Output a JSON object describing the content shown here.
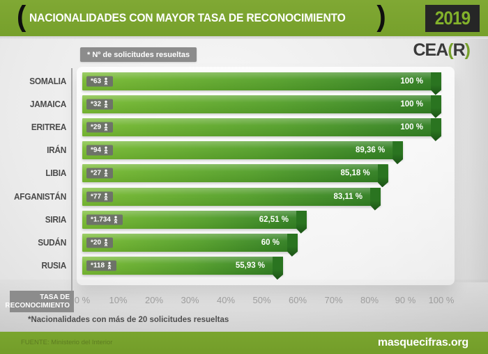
{
  "header": {
    "title": "NACIONALIDADES CON MAYOR TASA DE RECONOCIMIENTO",
    "year": "2019",
    "bracket_left": "(",
    "bracket_right": ")"
  },
  "logo": {
    "prefix": "CEA",
    "paren_open": "(",
    "r": "R",
    "paren_close": ")"
  },
  "legend": {
    "label": "* Nº de solicitudes resueltas"
  },
  "chart_data": {
    "type": "bar",
    "orientation": "horizontal",
    "title": "NACIONALIDADES CON MAYOR TASA DE RECONOCIMIENTO",
    "xlabel": "TASA DE RECONOCIMIENTO",
    "xlim": [
      0,
      100
    ],
    "x_ticks": [
      "0 %",
      "10%",
      "20%",
      "30%",
      "40%",
      "50%",
      "60%",
      "70%",
      "80%",
      "90 %",
      "100 %"
    ],
    "categories": [
      "SOMALIA",
      "JAMAICA",
      "ERITREA",
      "IRÁN",
      "LIBIA",
      "AFGANISTÁN",
      "SIRIA",
      "SUDÁN",
      "RUSIA"
    ],
    "series": [
      {
        "name": "Tasa de reconocimiento (%)",
        "values": [
          100,
          100,
          100,
          89.36,
          85.18,
          83.11,
          62.51,
          60,
          55.93
        ]
      }
    ],
    "rows": [
      {
        "country": "SOMALIA",
        "count": "*63",
        "value": 100,
        "value_label": "100 %"
      },
      {
        "country": "JAMAICA",
        "count": "*32",
        "value": 100,
        "value_label": "100 %"
      },
      {
        "country": "ERITREA",
        "count": "*29",
        "value": 100,
        "value_label": "100 %"
      },
      {
        "country": "IRÁN",
        "count": "*94",
        "value": 89.36,
        "value_label": "89,36 %"
      },
      {
        "country": "LIBIA",
        "count": "*27",
        "value": 85.18,
        "value_label": "85,18 %"
      },
      {
        "country": "AFGANISTÁN",
        "count": "*77",
        "value": 83.11,
        "value_label": "83,11 %"
      },
      {
        "country": "SIRIA",
        "count": "*1.734",
        "value": 62.51,
        "value_label": "62,51 %"
      },
      {
        "country": "SUDÁN",
        "count": "*20",
        "value": 60,
        "value_label": "60 %"
      },
      {
        "country": "RUSIA",
        "count": "*118",
        "value": 55.93,
        "value_label": "55,93 %"
      }
    ],
    "legend_note": "* Nº de solicitudes resueltas",
    "footnote": "*Nacionalidades con más de 20 solicitudes resueltas",
    "legend_position": "top-left",
    "grid": false
  },
  "axis_label": {
    "line1": "TASA DE",
    "line2": "RECONOCIMIENTO"
  },
  "footnote": "*Nacionalidades con más de 20 solicitudes resueltas",
  "footer": {
    "source": "FUENTE: Ministerio del Interior",
    "site": "masquecifras.org"
  },
  "colors": {
    "header_green": "#76a02b",
    "year_text_green": "#83b22b",
    "year_box_bg": "#262626",
    "bar_light_green": "#79bb33",
    "bar_dark_green": "#2f7d22",
    "bar_fold_green": "#1c5216",
    "badge_gray": "#6c6c6c",
    "axis_box_gray": "#8c8c8c",
    "tick_gray": "#9d9d9d"
  }
}
